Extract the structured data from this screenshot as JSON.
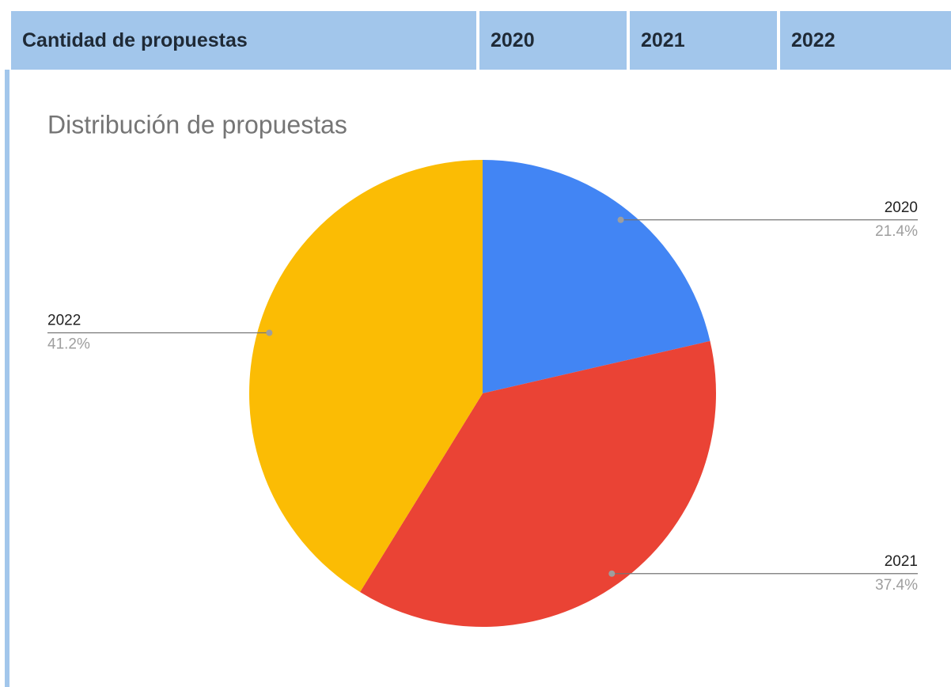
{
  "table": {
    "header": [
      "Cantidad de propuestas",
      "2020",
      "2021",
      "2022"
    ]
  },
  "chart_data": {
    "type": "pie",
    "title": "Distribución de propuestas",
    "categories": [
      "2020",
      "2021",
      "2022"
    ],
    "values": [
      21.4,
      37.4,
      41.2
    ],
    "value_labels": [
      "21.4%",
      "37.4%",
      "41.2%"
    ],
    "colors": [
      "#4285f4",
      "#ea4335",
      "#fbbc04"
    ]
  }
}
